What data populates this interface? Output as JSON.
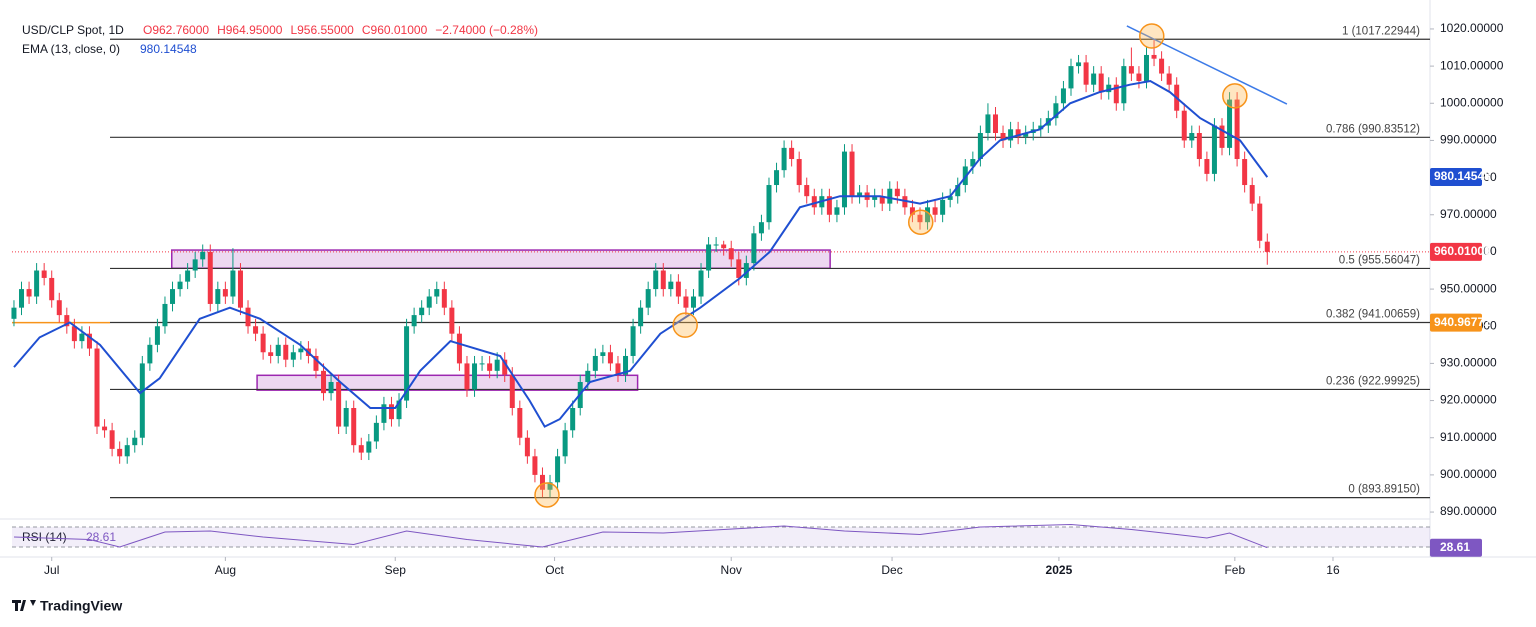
{
  "chart_data": {
    "type": "candlestick",
    "title": "USD/CLP Spot, 1D",
    "legend_values": [
      "O962.76000",
      "H964.95000",
      "L956.55000",
      "C960.01000",
      "−2.74000 (−0.28%)"
    ],
    "up_color": "#089981",
    "down_color": "#f23645",
    "xlim": [
      -0.26,
      187.55
    ],
    "ylim": [
      888.4,
      1025.1
    ],
    "yticks": [
      {
        "value": 890,
        "label": "890.00000"
      },
      {
        "value": 900,
        "label": "900.00000"
      },
      {
        "value": 910,
        "label": "910.00000"
      },
      {
        "value": 920,
        "label": "920.00000"
      },
      {
        "value": 930,
        "label": "930.00000"
      },
      {
        "value": 940,
        "label": "940.00000"
      },
      {
        "value": 950,
        "label": "950.00000"
      },
      {
        "value": 960,
        "label": "960.00000"
      },
      {
        "value": 970,
        "label": "970.00000"
      },
      {
        "value": 980,
        "label": "980.00000"
      },
      {
        "value": 990,
        "label": "990.00000"
      },
      {
        "value": 1000,
        "label": "1000.00000"
      },
      {
        "value": 1010,
        "label": "1010.00000"
      },
      {
        "value": 1020,
        "label": "1020.00000"
      }
    ],
    "xticks": [
      {
        "value": 5,
        "label": "Jul"
      },
      {
        "value": 28,
        "label": "Aug"
      },
      {
        "value": 50.5,
        "label": "Sep"
      },
      {
        "value": 71.6,
        "label": "Oct"
      },
      {
        "value": 95,
        "label": "Nov"
      },
      {
        "value": 116.3,
        "label": "Dec"
      },
      {
        "value": 138.4,
        "label": "2025",
        "bold": true
      },
      {
        "value": 161.7,
        "label": "Feb"
      },
      {
        "value": 174.7,
        "label": "16"
      }
    ],
    "ohlc": [
      [
        942,
        947,
        940,
        945
      ],
      [
        945,
        952,
        943,
        950
      ],
      [
        950,
        952,
        946,
        948
      ],
      [
        948,
        957,
        946,
        955
      ],
      [
        955,
        957,
        951,
        953
      ],
      [
        953,
        955,
        945,
        947
      ],
      [
        947,
        949,
        941,
        943
      ],
      [
        943,
        945,
        938,
        940
      ],
      [
        940,
        942,
        934,
        936
      ],
      [
        936,
        940,
        934,
        938
      ],
      [
        938,
        940,
        932,
        934
      ],
      [
        934,
        936,
        911,
        913
      ],
      [
        913,
        915,
        910,
        912
      ],
      [
        912,
        914,
        905,
        907
      ],
      [
        907,
        909,
        903,
        905
      ],
      [
        905,
        910,
        903,
        908
      ],
      [
        908,
        912,
        906,
        910
      ],
      [
        910,
        932,
        908,
        930
      ],
      [
        930,
        937,
        928,
        935
      ],
      [
        935,
        942,
        933,
        940
      ],
      [
        940,
        948,
        938,
        946
      ],
      [
        946,
        952,
        944,
        950
      ],
      [
        950,
        954,
        948,
        952
      ],
      [
        952,
        957,
        950,
        955
      ],
      [
        955,
        960,
        953,
        958
      ],
      [
        958,
        962,
        956,
        960
      ],
      [
        960,
        962,
        944,
        946
      ],
      [
        946,
        952,
        944,
        950
      ],
      [
        950,
        952,
        946,
        948
      ],
      [
        948,
        961,
        946,
        955
      ],
      [
        955,
        957,
        943,
        945
      ],
      [
        945,
        947,
        938,
        940
      ],
      [
        940,
        942,
        936,
        938
      ],
      [
        938,
        940,
        931,
        933
      ],
      [
        933,
        935,
        930,
        932
      ],
      [
        932,
        937,
        930,
        935
      ],
      [
        935,
        937,
        929,
        931
      ],
      [
        931,
        935,
        929,
        933
      ],
      [
        933,
        936,
        931,
        934
      ],
      [
        934,
        936,
        930,
        932
      ],
      [
        932,
        934,
        926,
        928
      ],
      [
        928,
        930,
        920,
        922
      ],
      [
        922,
        927,
        920,
        925
      ],
      [
        925,
        927,
        911,
        913
      ],
      [
        913,
        920,
        911,
        918
      ],
      [
        918,
        920,
        906,
        908
      ],
      [
        908,
        910,
        904,
        906
      ],
      [
        906,
        911,
        904,
        909
      ],
      [
        909,
        916,
        907,
        914
      ],
      [
        914,
        921,
        912,
        919
      ],
      [
        919,
        921,
        913,
        915
      ],
      [
        915,
        922,
        913,
        920
      ],
      [
        920,
        942,
        918,
        940
      ],
      [
        940,
        945,
        938,
        943
      ],
      [
        943,
        947,
        941,
        945
      ],
      [
        945,
        950,
        943,
        948
      ],
      [
        948,
        952,
        946,
        950
      ],
      [
        950,
        952,
        943,
        945
      ],
      [
        945,
        947,
        936,
        938
      ],
      [
        938,
        940,
        928,
        930
      ],
      [
        930,
        932,
        921,
        923
      ],
      [
        923,
        932,
        921,
        930
      ],
      [
        930,
        932,
        928,
        930
      ],
      [
        930,
        932,
        926,
        928
      ],
      [
        928,
        933,
        926,
        931
      ],
      [
        931,
        933,
        925,
        927
      ],
      [
        927,
        929,
        916,
        918
      ],
      [
        918,
        920,
        908,
        910
      ],
      [
        910,
        912,
        903,
        905
      ],
      [
        905,
        907,
        898,
        900
      ],
      [
        900,
        902,
        894,
        896
      ],
      [
        896,
        900,
        894,
        898
      ],
      [
        898,
        907,
        896,
        905
      ],
      [
        905,
        914,
        903,
        912
      ],
      [
        912,
        920,
        910,
        918
      ],
      [
        918,
        927,
        916,
        925
      ],
      [
        925,
        930,
        923,
        928
      ],
      [
        928,
        934,
        926,
        932
      ],
      [
        932,
        935,
        930,
        933
      ],
      [
        933,
        935,
        928,
        930
      ],
      [
        930,
        932,
        925,
        927
      ],
      [
        927,
        934,
        925,
        932
      ],
      [
        932,
        942,
        930,
        940
      ],
      [
        940,
        947,
        938,
        945
      ],
      [
        945,
        952,
        943,
        950
      ],
      [
        950,
        957,
        948,
        955
      ],
      [
        955,
        957,
        948,
        950
      ],
      [
        950,
        954,
        948,
        952
      ],
      [
        952,
        954,
        946,
        948
      ],
      [
        948,
        950,
        943,
        945
      ],
      [
        945,
        950,
        943,
        948
      ],
      [
        948,
        957,
        946,
        955
      ],
      [
        955,
        964,
        953,
        962
      ],
      [
        962,
        964,
        960,
        962
      ],
      [
        962,
        963,
        959,
        961
      ],
      [
        961,
        963,
        956,
        958
      ],
      [
        958,
        960,
        951,
        953
      ],
      [
        953,
        959,
        951,
        957
      ],
      [
        957,
        967,
        955,
        965
      ],
      [
        965,
        970,
        963,
        968
      ],
      [
        968,
        980,
        966,
        978
      ],
      [
        978,
        984,
        976,
        982
      ],
      [
        982,
        990,
        980,
        988
      ],
      [
        988,
        990,
        983,
        985
      ],
      [
        985,
        987,
        976,
        978
      ],
      [
        978,
        980,
        973,
        975
      ],
      [
        975,
        977,
        970,
        972
      ],
      [
        972,
        977,
        970,
        975
      ],
      [
        975,
        977,
        968,
        970
      ],
      [
        970,
        974,
        968,
        972
      ],
      [
        972,
        989,
        970,
        987
      ],
      [
        987,
        989,
        973,
        975
      ],
      [
        975,
        978,
        973,
        976
      ],
      [
        976,
        978,
        972,
        974
      ],
      [
        974,
        977,
        972,
        975
      ],
      [
        975,
        977,
        971,
        973
      ],
      [
        973,
        979,
        971,
        977
      ],
      [
        977,
        979,
        973,
        975
      ],
      [
        975,
        977,
        970,
        972
      ],
      [
        972,
        974,
        968,
        970
      ],
      [
        970,
        972,
        966,
        968
      ],
      [
        968,
        974,
        966,
        972
      ],
      [
        972,
        974,
        968,
        970
      ],
      [
        970,
        976,
        968,
        974
      ],
      [
        974,
        977,
        972,
        975
      ],
      [
        975,
        980,
        973,
        978
      ],
      [
        978,
        985,
        976,
        983
      ],
      [
        983,
        987,
        981,
        985
      ],
      [
        985,
        994,
        983,
        992
      ],
      [
        992,
        1000,
        990,
        997
      ],
      [
        997,
        999,
        990,
        992
      ],
      [
        992,
        994,
        988,
        990
      ],
      [
        990,
        995,
        988,
        993
      ],
      [
        993,
        995,
        989,
        991
      ],
      [
        991,
        994,
        989,
        992
      ],
      [
        992,
        995,
        990,
        993
      ],
      [
        993,
        996,
        991,
        994
      ],
      [
        994,
        998,
        992,
        996
      ],
      [
        996,
        1002,
        994,
        1000
      ],
      [
        1000,
        1006,
        998,
        1004
      ],
      [
        1004,
        1012,
        1002,
        1010
      ],
      [
        1010,
        1013,
        1008,
        1011
      ],
      [
        1011,
        1013,
        1003,
        1005
      ],
      [
        1005,
        1010,
        1003,
        1008
      ],
      [
        1008,
        1010,
        1001,
        1003
      ],
      [
        1003,
        1007,
        1001,
        1005
      ],
      [
        1005,
        1007,
        998,
        1000
      ],
      [
        1000,
        1012,
        998,
        1010
      ],
      [
        1010,
        1015,
        1006,
        1008
      ],
      [
        1008,
        1010,
        1004,
        1006
      ],
      [
        1006,
        1015,
        1004,
        1013
      ],
      [
        1013,
        1017,
        1010,
        1012
      ],
      [
        1012,
        1014,
        1006,
        1008
      ],
      [
        1008,
        1010,
        1003,
        1005
      ],
      [
        1005,
        1007,
        996,
        998
      ],
      [
        998,
        1000,
        988,
        990
      ],
      [
        990,
        994,
        988,
        992
      ],
      [
        992,
        994,
        983,
        985
      ],
      [
        985,
        987,
        979,
        981
      ],
      [
        981,
        996,
        979,
        994
      ],
      [
        994,
        996,
        986,
        988
      ],
      [
        988,
        1003,
        986,
        1001
      ],
      [
        1001,
        1003,
        983,
        985
      ],
      [
        985,
        987,
        976,
        978
      ],
      [
        978,
        980,
        971,
        973
      ],
      [
        973,
        975,
        961,
        963
      ],
      [
        962.76,
        964.95,
        956.55,
        960.01
      ]
    ],
    "ema": {
      "name": "EMA (13, close, 0)",
      "value_label": "980.14548",
      "color": "#1f4fd1",
      "x": [
        0,
        3.4,
        7.4,
        11.4,
        16.7,
        19.3,
        24.6,
        28.6,
        32.6,
        37.9,
        43.2,
        47.2,
        50.5,
        53.8,
        57.8,
        64.4,
        68.3,
        70.3,
        72.3,
        76.3,
        81.6,
        85.6,
        90.9,
        96.2,
        100.1,
        104.1,
        109.4,
        114.7,
        120,
        124,
        127.9,
        130.6,
        135.9,
        139.9,
        143.8,
        147.8,
        150.5,
        153.1,
        157.1,
        162.4,
        166
      ],
      "values": [
        929,
        937,
        941,
        935,
        922,
        926,
        942,
        945,
        942,
        935,
        925,
        918,
        918,
        928,
        936,
        932,
        920,
        913,
        915,
        925,
        928,
        938,
        945,
        953,
        960,
        972,
        975,
        975,
        973,
        975,
        985,
        990,
        993,
        1000,
        1003,
        1005,
        1006,
        1003,
        996,
        990,
        980.14548
      ]
    },
    "fib": [
      {
        "label": "1 (1017.22944)",
        "value": 1017.22944
      },
      {
        "label": "0.786 (990.83512)",
        "value": 990.83512
      },
      {
        "label": "0.5 (955.56047)",
        "value": 955.56047
      },
      {
        "label": "0.382 (941.00659)",
        "value": 941.00659
      },
      {
        "label": "0.236 (922.99925)",
        "value": 922.99925
      },
      {
        "label": "0 (893.89150)",
        "value": 893.8915
      }
    ],
    "price_labels": [
      {
        "label": "960.01000",
        "value": 960.01,
        "color": "#f23645"
      },
      {
        "label": "980.14548",
        "value": 980.14548,
        "color": "#1f4fd1"
      },
      {
        "label": "940.96772",
        "value": 940.96772,
        "color": "#f7931a"
      }
    ],
    "zones": [
      {
        "x": [
          20.9,
          108.1
        ],
        "y": [
          955.6,
          960.5
        ]
      },
      {
        "x": [
          32.2,
          82.6
        ],
        "y": [
          922.8,
          926.8
        ]
      }
    ],
    "trendline": {
      "x": [
        147.4,
        168.6
      ],
      "y": [
        1020.8,
        999.8
      ]
    },
    "circles": [
      {
        "x": 70.6,
        "y": 894.6
      },
      {
        "x": 88.9,
        "y": 940.3
      },
      {
        "x": 120.1,
        "y": 968.0
      },
      {
        "x": 150.7,
        "y": 1018.1
      },
      {
        "x": 161.7,
        "y": 1002.0
      }
    ],
    "rsi": {
      "name": "RSI (14)",
      "value_label": "28.61",
      "ylim": [
        20,
        80
      ],
      "band": [
        70,
        30
      ],
      "x": [
        0,
        10,
        14,
        20,
        26,
        33,
        45,
        52,
        60,
        70,
        78,
        86,
        94,
        102,
        110,
        120,
        128,
        140,
        148,
        154,
        158,
        161,
        166
      ],
      "values": [
        50,
        45,
        30,
        60,
        62,
        50,
        35,
        62,
        45,
        30,
        60,
        58,
        65,
        72,
        62,
        55,
        70,
        75,
        65,
        55,
        48,
        58,
        28.61
      ]
    },
    "brand": "TradingView"
  }
}
